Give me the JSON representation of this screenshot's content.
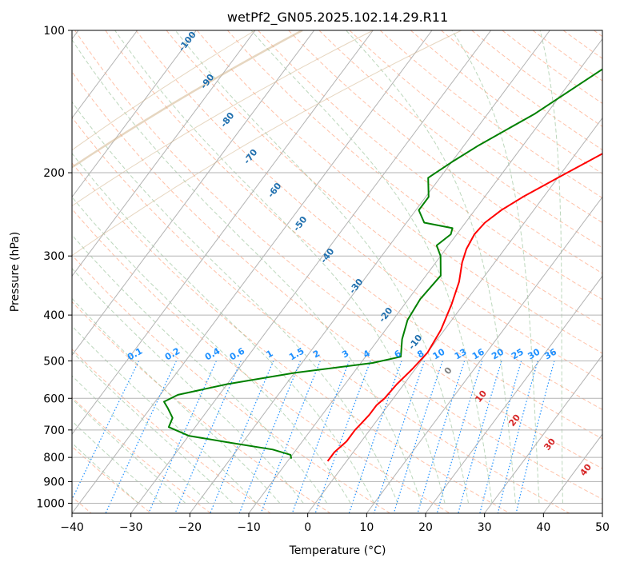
{
  "chart_data": {
    "type": "line",
    "diagram": "skew-T log-P",
    "title": "wetPf2_GN05.2025.102.14.29.R11",
    "xlabel": "Temperature (°C)",
    "ylabel": "Pressure (hPa)",
    "xlim": [
      -40,
      50
    ],
    "ylim": [
      1050,
      100
    ],
    "y_scale": "log",
    "x_ticks": [
      -40,
      -30,
      -20,
      -10,
      0,
      10,
      20,
      30,
      40,
      50
    ],
    "y_ticks": [
      100,
      200,
      300,
      400,
      500,
      600,
      700,
      800,
      900,
      1000
    ],
    "grid": true,
    "colors": {
      "temperature": "#ff0000",
      "dewpoint": "#008000",
      "isotherm": "#b3b3b3",
      "dry_adiabat": "#ffa07a",
      "moist_adiabat": "#8fbc8f",
      "mixing_ratio": "#1e90ff",
      "moist_label": "#1f6fae",
      "dry_label": "#d62728",
      "lcl_curve": "#d2b48c"
    },
    "series": [
      {
        "key": "temperature",
        "x": [
          -3.2,
          -3.2,
          -2.5,
          -2.5,
          -2.3,
          -2.0,
          -2.0,
          -1.5,
          -1.2,
          -0.5,
          0.0,
          -0.6,
          -2.0,
          -3.6,
          -5.5,
          -6.5,
          -7.0,
          -6.7,
          -5.5,
          -3.5,
          0.0,
          5.0,
          10.0,
          15.0,
          20.0,
          24.0,
          28.0
        ],
        "y": [
          815,
          780,
          740,
          700,
          680,
          650,
          620,
          600,
          560,
          520,
          480,
          430,
          380,
          340,
          310,
          290,
          270,
          255,
          240,
          225,
          205,
          180,
          160,
          140,
          125,
          112,
          100
        ]
      },
      {
        "key": "dewpoint",
        "x": [
          -9.7,
          -10.3,
          -14.0,
          -22.0,
          -30.0,
          -34.5,
          -35.0,
          -37.0,
          -38.5,
          -37.0,
          -30.0,
          -20.0,
          -8.0,
          -4.0,
          -6.0,
          -7.5,
          -8.0,
          -7.5,
          -10.0,
          -12.0,
          -11.0,
          -11.5,
          -17.0,
          -19.5,
          -19.5,
          -22.0,
          -20.0,
          -17.5,
          -12.0,
          -6.0,
          0.0
        ],
        "y": [
          805,
          790,
          770,
          745,
          720,
          690,
          660,
          630,
          610,
          590,
          560,
          530,
          505,
          490,
          450,
          410,
          370,
          330,
          300,
          285,
          270,
          262,
          255,
          240,
          225,
          205,
          190,
          175,
          150,
          120,
          100
        ]
      }
    ],
    "moist_adiabat_labels": [
      "-100",
      "-90",
      "-80",
      "-70",
      "-60",
      "-50",
      "-40",
      "-30",
      "-20",
      "-10"
    ],
    "mixing_ratio_labels": [
      "0.1",
      "0.2",
      "0.4",
      "0.6",
      "1",
      "1.5",
      "2",
      "3",
      "4",
      "6",
      "8",
      "10",
      "13",
      "16",
      "20",
      "25",
      "30",
      "36"
    ],
    "dry_adiabat_labels": [
      "0",
      "10",
      "20",
      "30",
      "40"
    ]
  }
}
